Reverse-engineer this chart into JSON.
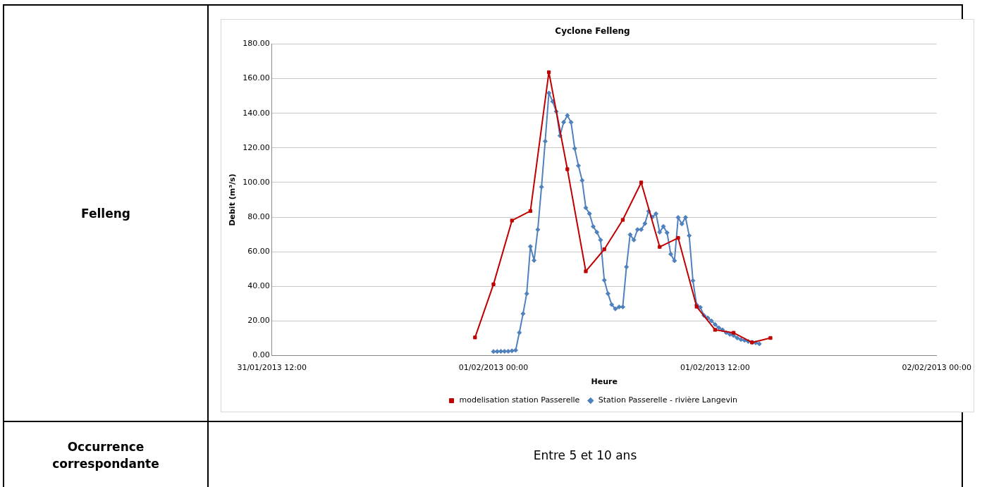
{
  "chart_data": {
    "type": "line",
    "title": "Cyclone Felleng",
    "xlabel": "Heure",
    "ylabel": "Debit (m³/s)",
    "annotations": [
      "Felleng",
      "Occurrence correspondante",
      "Entre 5 et 10 ans"
    ],
    "xlim": [
      "2013-01-31T12:00",
      "2013-02-02T00:00"
    ],
    "xticks": [
      {
        "value": "2013-01-31T12:00",
        "label": "31/01/2013 12:00"
      },
      {
        "value": "2013-02-01T00:00",
        "label": "01/02/2013 00:00"
      },
      {
        "value": "2013-02-01T12:00",
        "label": "01/02/2013 12:00"
      },
      {
        "value": "2013-02-02T00:00",
        "label": "02/02/2013 00:00"
      }
    ],
    "ylim": [
      0,
      180
    ],
    "yticks": [
      {
        "value": 0,
        "label": "0.00"
      },
      {
        "value": 20,
        "label": "20.00"
      },
      {
        "value": 40,
        "label": "40.00"
      },
      {
        "value": 60,
        "label": "60.00"
      },
      {
        "value": 80,
        "label": "80.00"
      },
      {
        "value": 100,
        "label": "100.00"
      },
      {
        "value": 120,
        "label": "120.00"
      },
      {
        "value": 140,
        "label": "140.00"
      },
      {
        "value": 160,
        "label": "160.00"
      },
      {
        "value": 180,
        "label": "180.00"
      }
    ],
    "grid": "y",
    "legend": "bottom",
    "line_style": "solid",
    "series": [
      {
        "name": "modelisation station Passerelle",
        "color": "#c00000",
        "marker": "square",
        "x": [
          "2013-01-31T23:00",
          "2013-02-01T00:00",
          "2013-02-01T01:00",
          "2013-02-01T02:00",
          "2013-02-01T03:00",
          "2013-02-01T04:00",
          "2013-02-01T05:00",
          "2013-02-01T06:00",
          "2013-02-01T07:00",
          "2013-02-01T08:00",
          "2013-02-01T09:00",
          "2013-02-01T10:00",
          "2013-02-01T11:00",
          "2013-02-01T12:00",
          "2013-02-01T13:00",
          "2013-02-01T14:00",
          "2013-02-01T15:00"
        ],
        "values": [
          10.5,
          41.2,
          78,
          83.5,
          163.7,
          107.7,
          48.7,
          61.4,
          78.4,
          100,
          62.8,
          68,
          28.3,
          14.9,
          13.2,
          7.6,
          10.2
        ]
      },
      {
        "name": "Station Passerelle - rivière Langevin",
        "color": "#4f81bd",
        "marker": "diamond",
        "x": [
          "2013-02-01T00:00",
          "2013-02-01T00:12",
          "2013-02-01T00:24",
          "2013-02-01T00:36",
          "2013-02-01T00:48",
          "2013-02-01T01:00",
          "2013-02-01T01:12",
          "2013-02-01T01:24",
          "2013-02-01T01:36",
          "2013-02-01T01:48",
          "2013-02-01T02:00",
          "2013-02-01T02:12",
          "2013-02-01T02:24",
          "2013-02-01T02:36",
          "2013-02-01T02:48",
          "2013-02-01T03:00",
          "2013-02-01T03:12",
          "2013-02-01T03:24",
          "2013-02-01T03:36",
          "2013-02-01T03:48",
          "2013-02-01T04:00",
          "2013-02-01T04:12",
          "2013-02-01T04:24",
          "2013-02-01T04:36",
          "2013-02-01T04:48",
          "2013-02-01T05:00",
          "2013-02-01T05:12",
          "2013-02-01T05:24",
          "2013-02-01T05:36",
          "2013-02-01T05:48",
          "2013-02-01T06:00",
          "2013-02-01T06:12",
          "2013-02-01T06:24",
          "2013-02-01T06:36",
          "2013-02-01T06:48",
          "2013-02-01T07:00",
          "2013-02-01T07:12",
          "2013-02-01T07:24",
          "2013-02-01T07:36",
          "2013-02-01T07:48",
          "2013-02-01T08:00",
          "2013-02-01T08:12",
          "2013-02-01T08:24",
          "2013-02-01T08:36",
          "2013-02-01T08:48",
          "2013-02-01T09:00",
          "2013-02-01T09:12",
          "2013-02-01T09:24",
          "2013-02-01T09:36",
          "2013-02-01T09:48",
          "2013-02-01T10:00",
          "2013-02-01T10:12",
          "2013-02-01T10:24",
          "2013-02-01T10:36",
          "2013-02-01T10:48",
          "2013-02-01T11:00",
          "2013-02-01T11:12",
          "2013-02-01T11:24",
          "2013-02-01T11:36",
          "2013-02-01T11:48",
          "2013-02-01T12:00",
          "2013-02-01T12:12",
          "2013-02-01T12:24",
          "2013-02-01T12:36",
          "2013-02-01T12:48",
          "2013-02-01T13:00",
          "2013-02-01T13:12",
          "2013-02-01T13:24",
          "2013-02-01T13:36",
          "2013-02-01T13:48",
          "2013-02-01T14:00",
          "2013-02-01T14:12",
          "2013-02-01T14:24"
        ],
        "values": [
          2.4,
          2.4,
          2.5,
          2.5,
          2.5,
          2.8,
          3.1,
          13.3,
          24.2,
          35.8,
          63,
          55,
          72.8,
          97.4,
          123.8,
          151.7,
          146.8,
          141,
          127,
          134.8,
          138.7,
          134.8,
          119.6,
          109.7,
          101.2,
          85.4,
          82,
          74.6,
          71.3,
          66.8,
          43.6,
          35.8,
          29.5,
          27,
          28.1,
          28.1,
          51.2,
          69.9,
          66.8,
          72.8,
          72.8,
          76.3,
          83.4,
          80,
          82,
          71.3,
          74.6,
          71,
          58.6,
          54.8,
          79.8,
          76.1,
          79.8,
          69.3,
          43.3,
          29.3,
          27.9,
          23.2,
          21.8,
          20.1,
          18,
          16.1,
          14.9,
          13.3,
          12.3,
          11.6,
          10.2,
          9.3,
          8.8,
          8.2,
          7.8,
          7.4,
          6.8
        ]
      }
    ]
  }
}
